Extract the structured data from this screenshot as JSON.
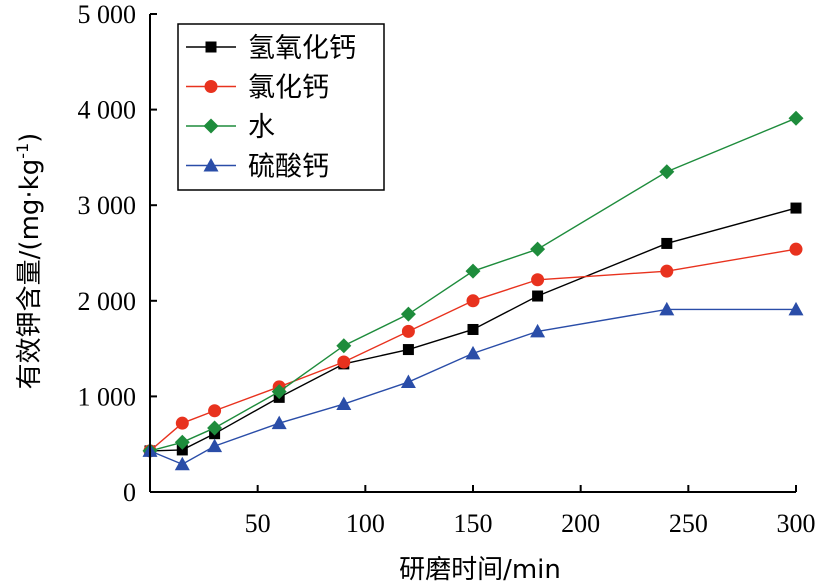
{
  "chart_data": {
    "type": "line",
    "xlabel": "研磨时间/min",
    "ylabel": "有效钾含量/(mg·kg",
    "ylabel_sup": "-1",
    "ylabel_tail": ")",
    "xlim": [
      0,
      300
    ],
    "ylim": [
      0,
      5000
    ],
    "xticks": [
      50,
      100,
      150,
      200,
      250,
      300
    ],
    "xtick_labels": [
      "50",
      "100",
      "150",
      "200",
      "250",
      "300"
    ],
    "yticks": [
      0,
      1000,
      2000,
      3000,
      4000,
      5000
    ],
    "ytick_labels": [
      "0",
      "1 000",
      "2 000",
      "3 000",
      "4 000",
      "5 000"
    ],
    "grid": false,
    "legend_position": "top-left",
    "x": [
      0,
      15,
      30,
      60,
      90,
      120,
      150,
      180,
      240,
      300
    ],
    "series": [
      {
        "name": "氢氧化钙",
        "color": "#000000",
        "marker": "square",
        "values": [
          430,
          440,
          610,
          990,
          1340,
          1490,
          1700,
          2050,
          2600,
          2970
        ]
      },
      {
        "name": "氯化钙",
        "color": "#e8321e",
        "marker": "circle",
        "values": [
          430,
          720,
          850,
          1100,
          1360,
          1680,
          2000,
          2220,
          2310,
          2540
        ]
      },
      {
        "name": "水",
        "color": "#1e8c3c",
        "marker": "diamond",
        "values": [
          430,
          520,
          670,
          1050,
          1530,
          1860,
          2310,
          2540,
          3350,
          3910
        ]
      },
      {
        "name": "硫酸钙",
        "color": "#2a4da8",
        "marker": "triangle",
        "values": [
          430,
          290,
          480,
          720,
          920,
          1150,
          1450,
          1680,
          1910,
          1910
        ]
      }
    ]
  }
}
